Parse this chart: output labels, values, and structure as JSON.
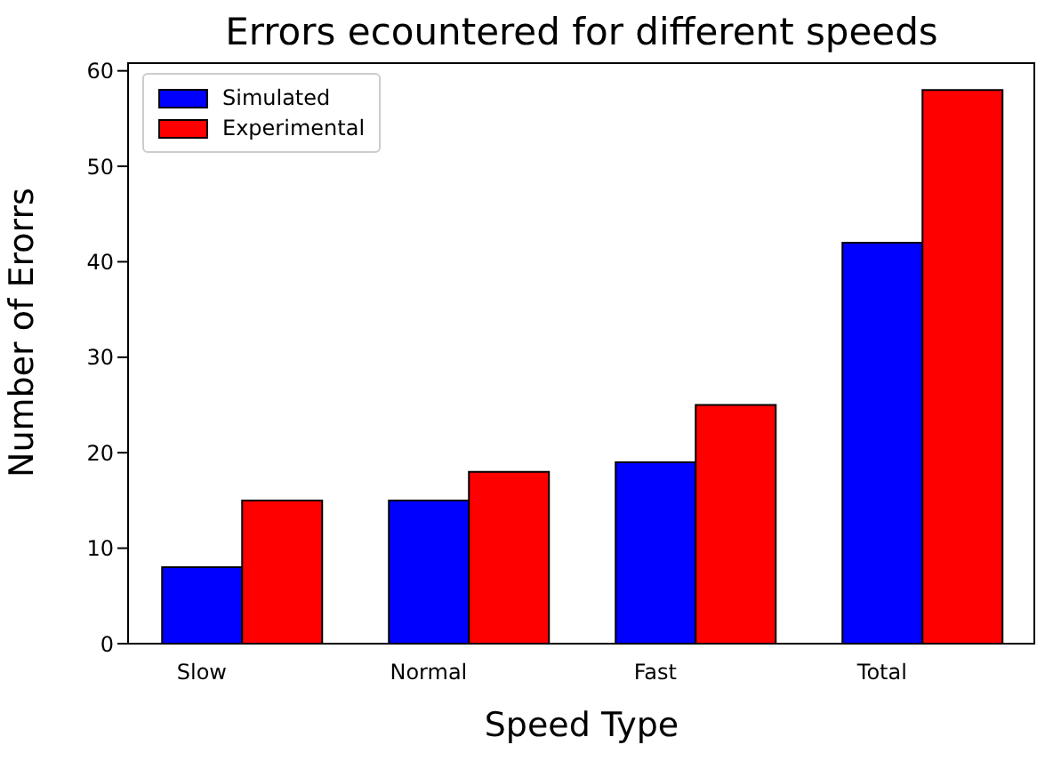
{
  "chart_data": {
    "type": "bar",
    "title": "Errors ecountered for different speeds",
    "xlabel": "Speed Type",
    "ylabel": "Number of Erorrs",
    "categories": [
      "Slow",
      "Normal",
      "Fast",
      "Total"
    ],
    "series": [
      {
        "name": "Simulated",
        "color": "#0000ff",
        "values": [
          8,
          15,
          19,
          42
        ]
      },
      {
        "name": "Experimental",
        "color": "#ff0000",
        "values": [
          15,
          18,
          25,
          58
        ]
      }
    ],
    "ylim": [
      0,
      60.9
    ],
    "yticks": [
      0,
      10,
      20,
      30,
      40,
      50,
      60
    ],
    "legend": "top left",
    "grid": false
  }
}
